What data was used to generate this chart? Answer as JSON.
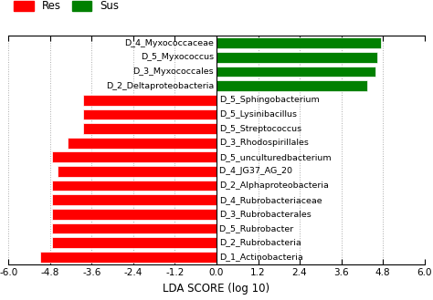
{
  "categories": [
    "D_1_Actinobacteria",
    "D_2_Rubrobacteria",
    "D_5_Rubrobacter ",
    "D_3_Rubrobacterales",
    "D_4_Rubrobacteriaceae",
    "D_2_Alphaproteobacteria",
    "D_4_JG37_AG_20 ",
    "D_5_unculturedbacterium",
    "D_3_Rhodospirillales",
    "D_5_Streptococcus",
    "D_5_Lysinibacillus",
    "D_5_Sphingobacterium",
    "D_2_Deltaproteobacteria",
    "D_3_Myxococcales",
    "D_5_Myxococcus",
    "D_4_Myxococcaceae"
  ],
  "values": [
    -5.1,
    -4.75,
    -4.75,
    -4.75,
    -4.75,
    -4.75,
    -4.6,
    -4.75,
    -4.3,
    -3.85,
    -3.85,
    -3.85,
    4.35,
    4.6,
    4.65,
    4.75
  ],
  "colors": [
    "#ff0000",
    "#ff0000",
    "#ff0000",
    "#ff0000",
    "#ff0000",
    "#ff0000",
    "#ff0000",
    "#ff0000",
    "#ff0000",
    "#ff0000",
    "#ff0000",
    "#ff0000",
    "#008000",
    "#008000",
    "#008000",
    "#008000"
  ],
  "xlim": [
    -6.0,
    6.0
  ],
  "xticks": [
    -6.0,
    -4.8,
    -3.6,
    -2.4,
    -1.2,
    0.0,
    1.2,
    2.4,
    3.6,
    4.8,
    6.0
  ],
  "xtick_labels": [
    "-6.0",
    "-4.8",
    "-3.6",
    "-2.4",
    "-1.2",
    "0.0",
    "1.2",
    "2.4",
    "3.6",
    "4.8",
    "6.0"
  ],
  "xlabel": "LDA SCORE (log 10)",
  "legend_res_color": "#ff0000",
  "legend_sus_color": "#008000",
  "background_color": "#ffffff",
  "grid_color": "#aaaaaa",
  "bar_height": 0.75,
  "label_fontsize": 6.8,
  "tick_fontsize": 7.5,
  "xlabel_fontsize": 8.5
}
